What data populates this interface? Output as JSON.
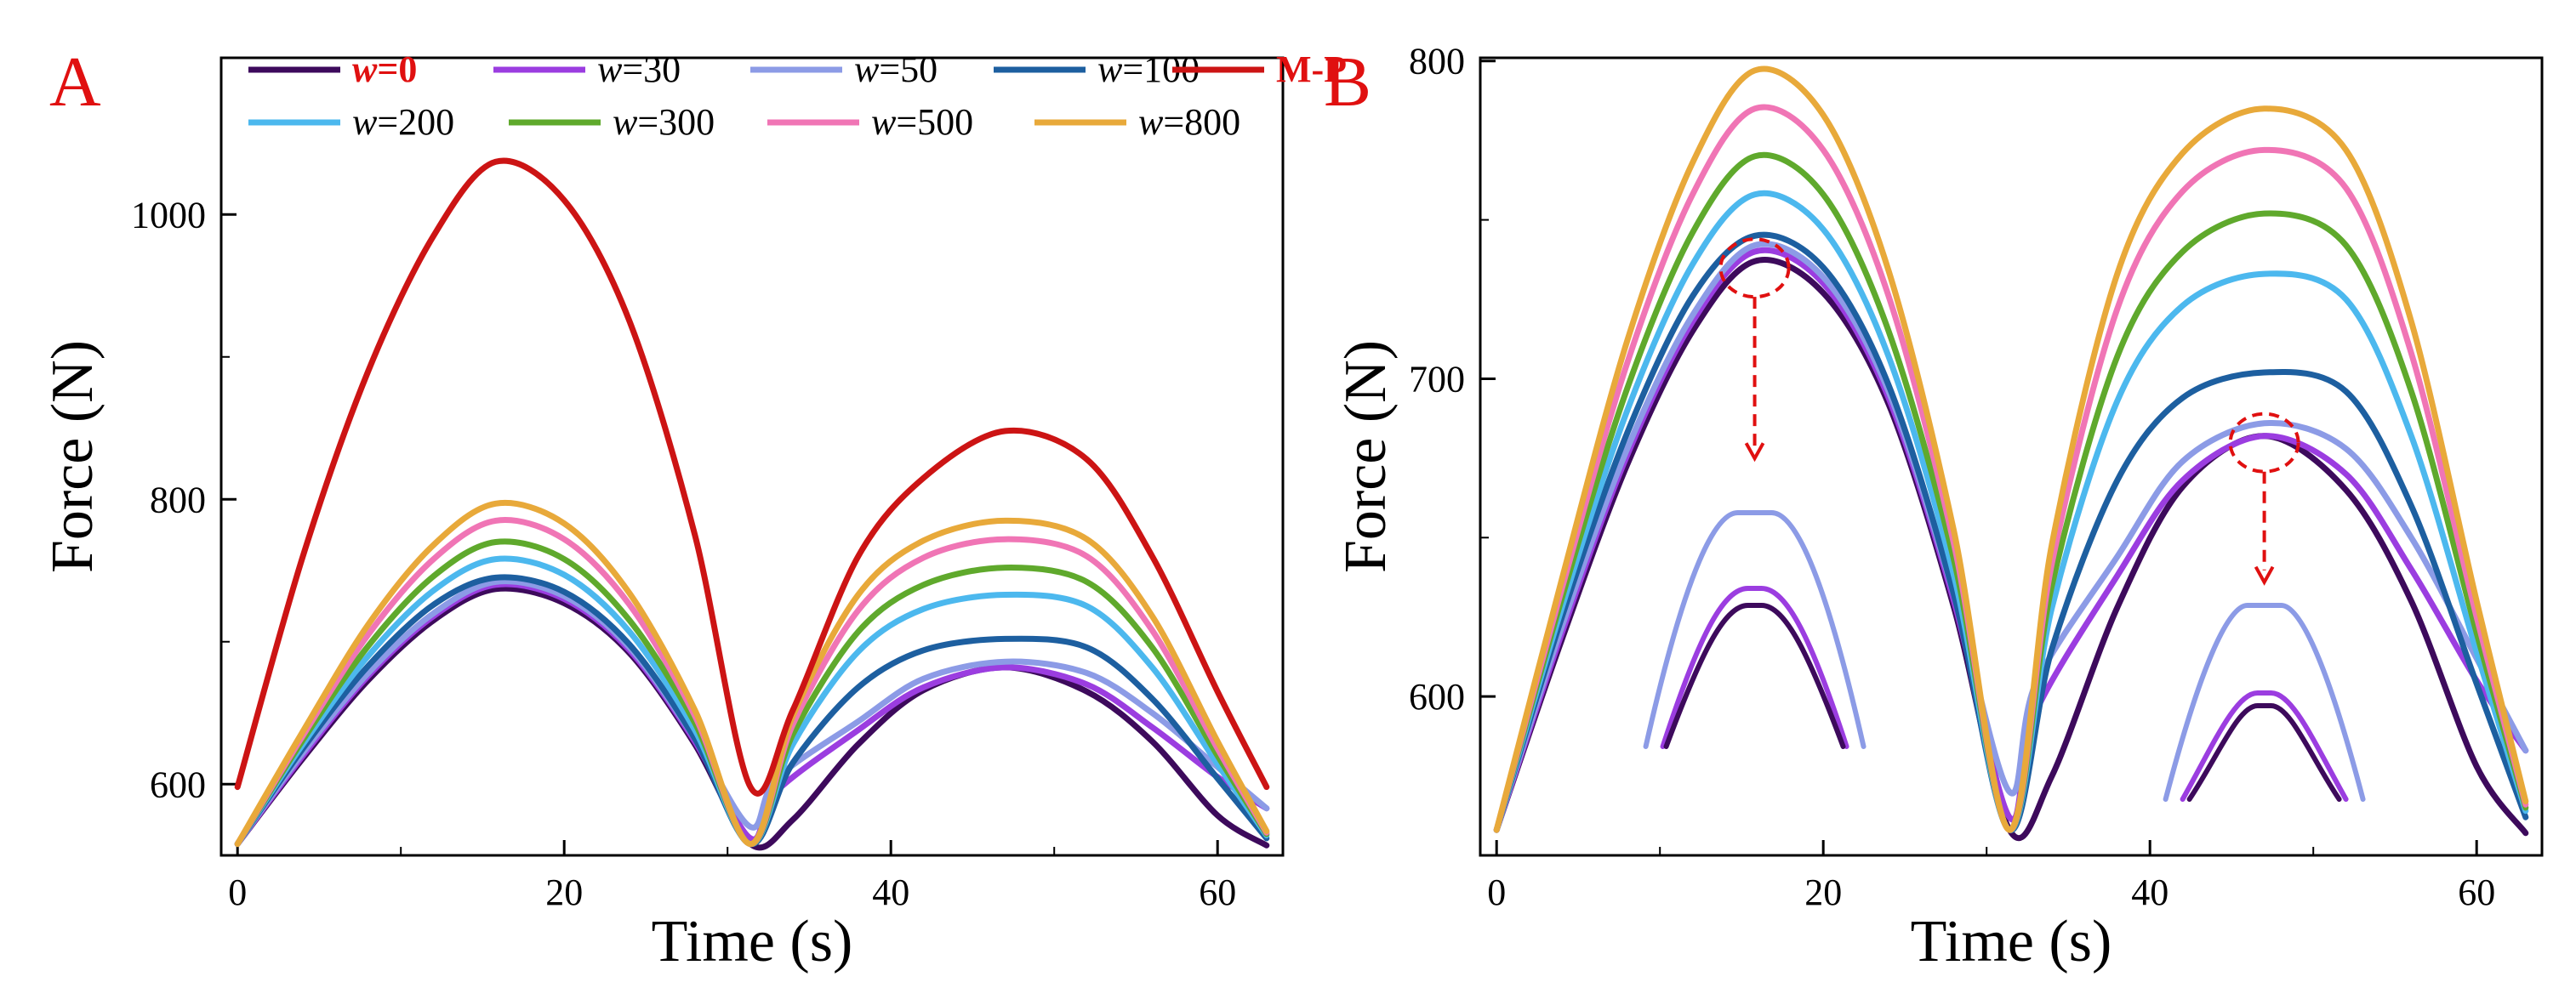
{
  "chart_data": [
    {
      "panel": "A",
      "type": "line",
      "title": "",
      "xlabel": "Time (s)",
      "ylabel": "Force (N)",
      "xlim": [
        -1,
        64
      ],
      "ylim": [
        550,
        1110
      ],
      "xticks": [
        0,
        20,
        40,
        60
      ],
      "yticks": [
        600,
        800,
        1000
      ],
      "legend": {
        "placement": "top",
        "rows": [
          [
            {
              "prefix": "w",
              "suffix": "=0",
              "series": "w=0",
              "highlight": true
            },
            {
              "prefix": "w",
              "suffix": "=30",
              "series": "w=30"
            },
            {
              "prefix": "w",
              "suffix": "=50",
              "series": "w=50"
            },
            {
              "prefix": "w",
              "suffix": "=100",
              "series": "w=100"
            },
            {
              "prefix": "",
              "suffix": "M-P",
              "series": "M-P",
              "highlight": true
            }
          ],
          [
            {
              "prefix": "w",
              "suffix": "=200",
              "series": "w=200"
            },
            {
              "prefix": "w",
              "suffix": "=300",
              "series": "w=300"
            },
            {
              "prefix": "w",
              "suffix": "=500",
              "series": "w=500"
            },
            {
              "prefix": "w",
              "suffix": "=800",
              "series": "w=800"
            }
          ]
        ]
      },
      "series": [
        {
          "name": "w=0",
          "color": "#3d0a5c",
          "x": [
            0,
            4,
            8,
            12,
            15.8,
            20,
            24,
            28,
            31.4,
            34,
            38,
            42,
            47,
            52,
            56,
            60,
            63
          ],
          "y": [
            558,
            618,
            673,
            715,
            737,
            727,
            692,
            628,
            558,
            575,
            628,
            666,
            682,
            665,
            630,
            578,
            557
          ]
        },
        {
          "name": "w=30",
          "color": "#9b3de0",
          "x": [
            0,
            4,
            8,
            12,
            15.8,
            20,
            24,
            28,
            31.4,
            33,
            38,
            42,
            47,
            52,
            56,
            60,
            63
          ],
          "y": [
            558,
            620,
            676,
            718,
            740,
            730,
            694,
            630,
            562,
            595,
            638,
            668,
            682,
            670,
            640,
            605,
            583
          ]
        },
        {
          "name": "w=50",
          "color": "#8c9be6",
          "x": [
            0,
            4,
            8,
            12,
            15.8,
            20,
            24,
            28,
            31.4,
            33,
            38,
            42,
            47,
            52,
            56,
            60,
            63
          ],
          "y": [
            558,
            622,
            678,
            720,
            742,
            732,
            696,
            632,
            570,
            604,
            644,
            674,
            686,
            678,
            650,
            612,
            583
          ]
        },
        {
          "name": "w=100",
          "color": "#1d5fa0",
          "x": [
            0,
            4,
            8,
            12,
            15.8,
            20,
            24,
            28,
            31.4,
            34,
            38,
            42,
            47,
            52,
            56,
            60,
            63
          ],
          "y": [
            558,
            625,
            683,
            726,
            745,
            735,
            698,
            632,
            558,
            615,
            668,
            694,
            702,
            696,
            660,
            604,
            562
          ]
        },
        {
          "name": "w=200",
          "color": "#4cb8ee",
          "x": [
            0,
            4,
            8,
            12,
            15.8,
            20,
            24,
            28,
            31.4,
            34,
            38,
            42,
            47,
            52,
            56,
            60,
            63
          ],
          "y": [
            558,
            628,
            690,
            736,
            758,
            747,
            707,
            638,
            558,
            628,
            693,
            723,
            733,
            725,
            682,
            614,
            564
          ]
        },
        {
          "name": "w=300",
          "color": "#5fa92c",
          "x": [
            0,
            4,
            8,
            12,
            15.8,
            20,
            24,
            28,
            31.4,
            34,
            38,
            42,
            47,
            52,
            56,
            60,
            63
          ],
          "y": [
            558,
            631,
            697,
            746,
            770,
            758,
            715,
            643,
            558,
            635,
            707,
            740,
            752,
            742,
            696,
            620,
            565
          ]
        },
        {
          "name": "w=500",
          "color": "#f075b5",
          "x": [
            0,
            4,
            8,
            12,
            15.8,
            20,
            24,
            28,
            31.4,
            34,
            38,
            42,
            47,
            52,
            56,
            60,
            63
          ],
          "y": [
            558,
            634,
            705,
            758,
            785,
            772,
            726,
            648,
            558,
            642,
            722,
            759,
            772,
            760,
            708,
            625,
            566
          ]
        },
        {
          "name": "w=800",
          "color": "#e8a93a",
          "x": [
            0,
            4,
            8,
            12,
            15.8,
            20,
            24,
            28,
            31.4,
            34,
            38,
            42,
            47,
            52,
            56,
            60,
            63
          ],
          "y": [
            558,
            637,
            712,
            768,
            797,
            783,
            734,
            652,
            558,
            648,
            733,
            771,
            785,
            772,
            718,
            630,
            567
          ]
        },
        {
          "name": "M-P",
          "color": "#cc1414",
          "x": [
            0,
            4,
            8,
            12,
            15.8,
            20,
            24,
            28,
            31.4,
            34,
            38,
            42,
            47,
            52,
            56,
            60,
            63
          ],
          "y": [
            598,
            760,
            890,
            985,
            1037,
            1010,
            925,
            775,
            598,
            652,
            760,
            815,
            848,
            828,
            760,
            665,
            598
          ]
        }
      ]
    },
    {
      "panel": "B",
      "type": "line",
      "title": "",
      "xlabel": "Time (s)",
      "ylabel": "Force (N)",
      "xlim": [
        -1,
        64
      ],
      "ylim": [
        550,
        801
      ],
      "xticks": [
        0,
        20,
        40,
        60
      ],
      "yticks": [
        600,
        700,
        800
      ],
      "annotations": [
        "dashed red circle at the first peak (t≈16 s, ≈737 N) with a downward arrow to the zoomed inset of the w=0 / w=30 / w=50 peaks",
        "dashed red circle at the second peak (t≈47 s, ≈682 N) with a downward arrow to the zoomed inset of the w=0 / w=30 / w=50 peaks"
      ],
      "series": [
        {
          "name": "w=0",
          "color": "#3d0a5c",
          "x": [
            0,
            4,
            8,
            12,
            15.8,
            20,
            24,
            28,
            31.4,
            34,
            38,
            42,
            47,
            52,
            56,
            60,
            63
          ],
          "y": [
            558,
            618,
            673,
            715,
            737,
            727,
            692,
            628,
            558,
            575,
            628,
            666,
            682,
            665,
            630,
            578,
            557
          ]
        },
        {
          "name": "w=30",
          "color": "#9b3de0",
          "x": [
            0,
            4,
            8,
            12,
            15.8,
            20,
            24,
            28,
            31.4,
            33,
            38,
            42,
            47,
            52,
            56,
            60,
            63
          ],
          "y": [
            558,
            620,
            676,
            718,
            740,
            730,
            694,
            630,
            562,
            595,
            638,
            668,
            682,
            670,
            640,
            605,
            583
          ]
        },
        {
          "name": "w=50",
          "color": "#8c9be6",
          "x": [
            0,
            4,
            8,
            12,
            15.8,
            20,
            24,
            28,
            31.4,
            33,
            38,
            42,
            47,
            52,
            56,
            60,
            63
          ],
          "y": [
            558,
            622,
            678,
            720,
            742,
            732,
            696,
            632,
            570,
            604,
            644,
            674,
            686,
            678,
            650,
            612,
            583
          ]
        },
        {
          "name": "w=100",
          "color": "#1d5fa0",
          "x": [
            0,
            4,
            8,
            12,
            15.8,
            20,
            24,
            28,
            31.4,
            34,
            38,
            42,
            47,
            52,
            56,
            60,
            63
          ],
          "y": [
            558,
            625,
            683,
            726,
            745,
            735,
            698,
            632,
            558,
            615,
            668,
            694,
            702,
            696,
            660,
            604,
            562
          ]
        },
        {
          "name": "w=200",
          "color": "#4cb8ee",
          "x": [
            0,
            4,
            8,
            12,
            15.8,
            20,
            24,
            28,
            31.4,
            34,
            38,
            42,
            47,
            52,
            56,
            60,
            63
          ],
          "y": [
            558,
            628,
            690,
            736,
            758,
            747,
            707,
            638,
            558,
            628,
            693,
            723,
            733,
            725,
            682,
            614,
            564
          ]
        },
        {
          "name": "w=300",
          "color": "#5fa92c",
          "x": [
            0,
            4,
            8,
            12,
            15.8,
            20,
            24,
            28,
            31.4,
            34,
            38,
            42,
            47,
            52,
            56,
            60,
            63
          ],
          "y": [
            558,
            631,
            697,
            746,
            770,
            758,
            715,
            643,
            558,
            635,
            707,
            740,
            752,
            742,
            696,
            620,
            565
          ]
        },
        {
          "name": "w=500",
          "color": "#f075b5",
          "x": [
            0,
            4,
            8,
            12,
            15.8,
            20,
            24,
            28,
            31.4,
            34,
            38,
            42,
            47,
            52,
            56,
            60,
            63
          ],
          "y": [
            558,
            634,
            705,
            758,
            785,
            772,
            726,
            648,
            558,
            642,
            722,
            759,
            772,
            760,
            708,
            625,
            566
          ]
        },
        {
          "name": "w=800",
          "color": "#e8a93a",
          "x": [
            0,
            4,
            8,
            12,
            15.8,
            20,
            24,
            28,
            31.4,
            34,
            38,
            42,
            47,
            52,
            56,
            60,
            63
          ],
          "y": [
            558,
            637,
            712,
            768,
            797,
            783,
            734,
            652,
            558,
            648,
            733,
            771,
            785,
            772,
            718,
            630,
            567
          ]
        }
      ],
      "insets": [
        {
          "name": "peak-1-zoom",
          "center_t": 15.8,
          "curves": [
            {
              "series": "w=50",
              "color": "#8c9be6"
            },
            {
              "series": "w=30",
              "color": "#9b3de0"
            },
            {
              "series": "w=0",
              "color": "#3d0a5c"
            }
          ]
        },
        {
          "name": "peak-2-zoom",
          "center_t": 47,
          "curves": [
            {
              "series": "w=50",
              "color": "#8c9be6"
            },
            {
              "series": "w=30",
              "color": "#9b3de0"
            },
            {
              "series": "w=0",
              "color": "#3d0a5c"
            }
          ]
        }
      ]
    }
  ]
}
